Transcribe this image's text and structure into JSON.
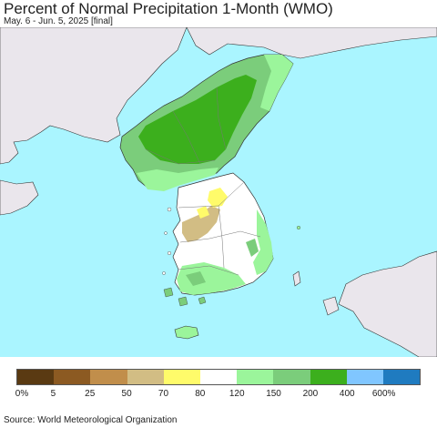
{
  "title": "Percent of Normal Precipitation 1-Month (WMO)",
  "subtitle": "May. 6 - Jun. 5, 2025 [final]",
  "colors": {
    "sea": "#aaf5ff",
    "outside_land": "#eae6ec",
    "border": "#333333"
  },
  "legend": {
    "colors": [
      "#5a3a12",
      "#8c5a22",
      "#c18e4b",
      "#d2bd84",
      "#fffb6a",
      "#ffffff",
      "#9bf59b",
      "#7bcd7b",
      "#3caf1d",
      "#80c6ff",
      "#1f7bc0"
    ],
    "labels": [
      "0%",
      "5",
      "25",
      "50",
      "70",
      "80",
      "120",
      "150",
      "200",
      "400",
      "600%"
    ]
  },
  "source": "Source: World Meteorological Organization"
}
